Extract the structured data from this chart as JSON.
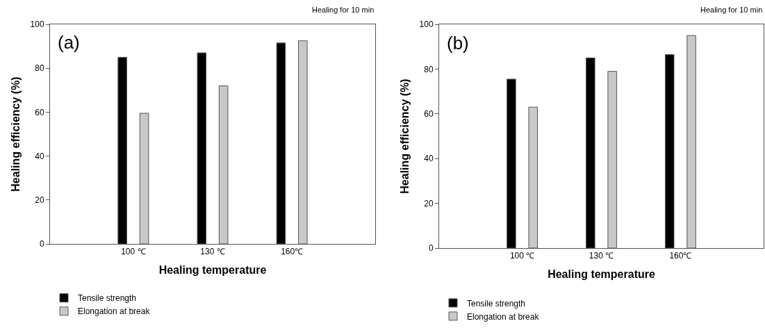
{
  "chart_data": [
    {
      "type": "bar",
      "annotations": [
        "(a)",
        "Healing for 10 min"
      ],
      "xlabel": "Healing temperature",
      "ylabel": "Healing efficiency (%)",
      "categories": [
        "100 ℃",
        "130 ℃",
        "160℃"
      ],
      "series": [
        {
          "name": "Tensile strength",
          "color": "#000000",
          "values": [
            85,
            87,
            91.5
          ]
        },
        {
          "name": "Elongation at break",
          "color": "#c8c8c8",
          "values": [
            59.5,
            72,
            92.5
          ]
        }
      ],
      "ylim": [
        0,
        100
      ],
      "yticks": [
        0,
        20,
        40,
        60,
        80,
        100
      ],
      "grid": false,
      "legend": "bottom left"
    },
    {
      "type": "bar",
      "annotations": [
        "(b)",
        "Healing for 10 min"
      ],
      "xlabel": "Healing temperature",
      "ylabel": "Healing efficiency (%)",
      "categories": [
        "100 ℃",
        "130 ℃",
        "160℃"
      ],
      "series": [
        {
          "name": "Tensile strength",
          "color": "#000000",
          "values": [
            75.5,
            85,
            86.5
          ]
        },
        {
          "name": "Elongation at break",
          "color": "#c8c8c8",
          "values": [
            63,
            79,
            95
          ]
        }
      ],
      "ylim": [
        0,
        100
      ],
      "yticks": [
        0,
        20,
        40,
        60,
        80,
        100
      ],
      "grid": false,
      "legend": "bottom left"
    }
  ]
}
